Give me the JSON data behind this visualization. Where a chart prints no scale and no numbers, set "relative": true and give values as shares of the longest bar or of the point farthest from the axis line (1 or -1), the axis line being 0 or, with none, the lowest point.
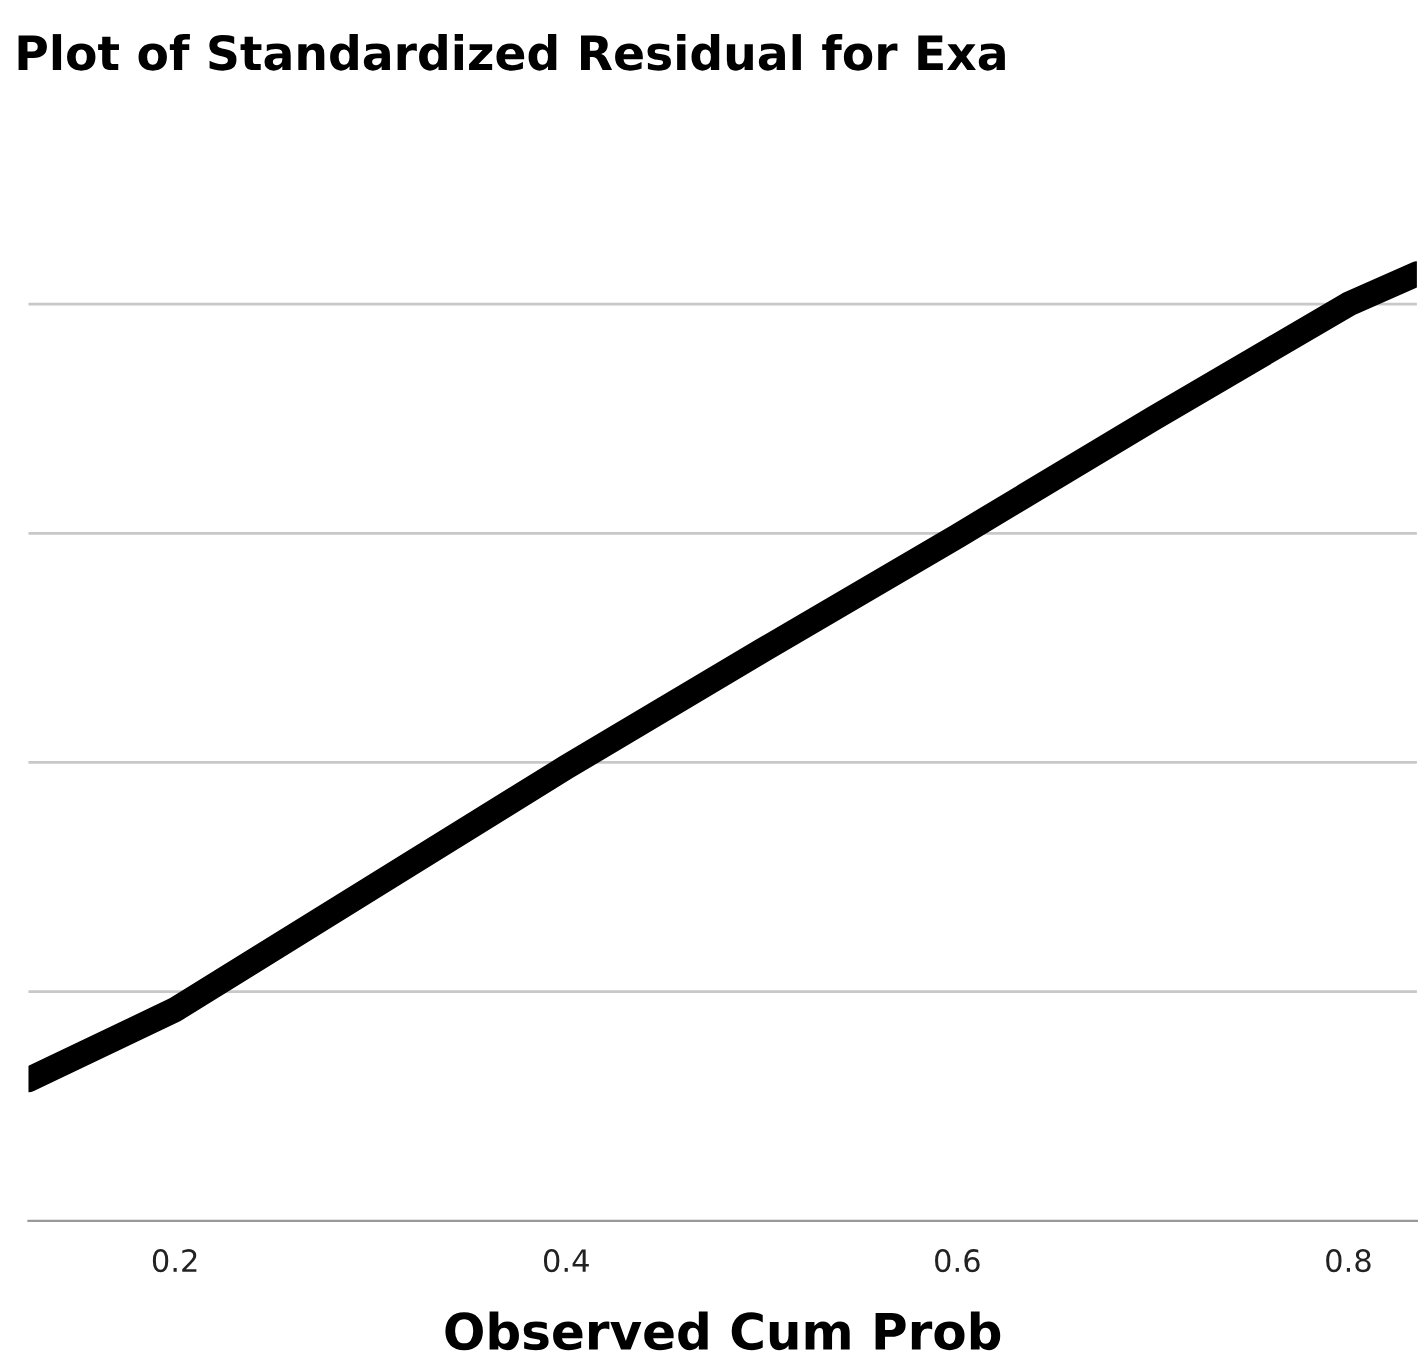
{
  "chart_data": {
    "type": "line",
    "title": "Plot of Standardized Residual for Exa",
    "xlabel": "Observed Cum Prob",
    "x": [
      0.125,
      0.2,
      0.3,
      0.4,
      0.5,
      0.6,
      0.7,
      0.8,
      0.835
    ],
    "series": [
      {
        "color": "#000000",
        "values": [
          0.149,
          0.223,
          0.351,
          0.479,
          0.602,
          0.723,
          0.847,
          0.968,
          1
        ]
      }
    ],
    "relative": true,
    "xlim": [
      0.125,
      0.835
    ],
    "xticks": [
      0.2,
      0.4,
      0.6,
      0.8
    ],
    "grid": "y",
    "tick_labels": "x",
    "marker": "none",
    "line_style": "solid"
  }
}
